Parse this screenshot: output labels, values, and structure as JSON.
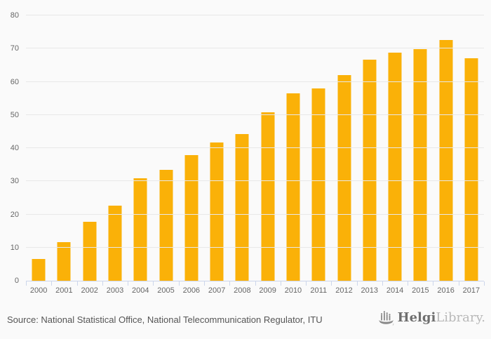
{
  "chart_data": {
    "type": "bar",
    "title": "",
    "xlabel": "",
    "ylabel": "",
    "categories": [
      "2000",
      "2001",
      "2002",
      "2003",
      "2004",
      "2005",
      "2006",
      "2007",
      "2008",
      "2009",
      "2010",
      "2011",
      "2012",
      "2013",
      "2014",
      "2015",
      "2016",
      "2017"
    ],
    "values": [
      6.6,
      11.6,
      17.8,
      22.7,
      30.8,
      33.4,
      37.9,
      41.6,
      44.2,
      50.7,
      56.6,
      57.9,
      62.0,
      66.6,
      68.7,
      69.8,
      72.5,
      67.0
    ],
    "ylim": [
      0,
      80
    ],
    "y_ticks": [
      0,
      10,
      20,
      30,
      40,
      50,
      60,
      70,
      80
    ],
    "grid": true,
    "legend": false,
    "bar_color": "#FAB108"
  },
  "colors": {
    "background": "#FAFAFA",
    "bar": "#FAB108",
    "gridline": "#E8E8E8",
    "axis_line": "#CCD6EB",
    "axis_label": "#666666",
    "source_text": "#555555"
  },
  "footer": {
    "source": "Source: National Statistical Office, National Telecommunication Regulator, ITU"
  },
  "logo": {
    "icon": "viking-ship-icon",
    "name_bold": "Helgi",
    "name_light": "Library."
  }
}
